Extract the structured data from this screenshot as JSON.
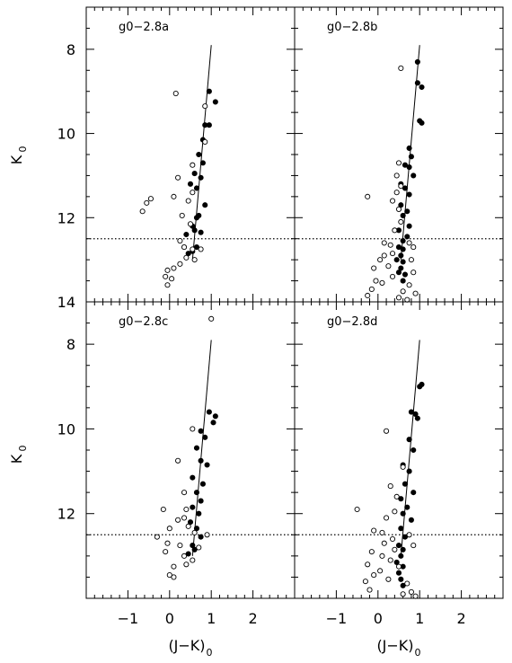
{
  "figure": {
    "xlabel": "(J−K)",
    "xlabel_sub": "0",
    "ylabel": "K",
    "ylabel_sub": "0",
    "line_color": "#000000",
    "point_color": "#000000",
    "grid": false
  },
  "chart_data": [
    {
      "type": "scatter",
      "title": "g0−2.8a",
      "xlim": [
        -2.0,
        3.0
      ],
      "ylim": [
        14.0,
        7.0
      ],
      "xticks": [
        -1,
        0,
        1,
        2
      ],
      "yticks": [
        8,
        10,
        12,
        14
      ],
      "yticklabels": [
        "8",
        "10",
        "12",
        "14"
      ],
      "limit_line": {
        "y": 12.5,
        "style": "dotted"
      },
      "fit_line": [
        [
          0.55,
          13.0
        ],
        [
          1.0,
          7.9
        ]
      ],
      "series": [
        {
          "marker": "filled",
          "points": [
            [
              0.95,
              9.0
            ],
            [
              1.1,
              9.25
            ],
            [
              0.85,
              9.8
            ],
            [
              0.95,
              9.8
            ],
            [
              0.8,
              10.15
            ],
            [
              0.7,
              10.5
            ],
            [
              0.8,
              10.7
            ],
            [
              0.6,
              10.95
            ],
            [
              0.75,
              11.05
            ],
            [
              0.5,
              11.2
            ],
            [
              0.65,
              11.3
            ],
            [
              0.85,
              11.7
            ],
            [
              0.7,
              11.95
            ],
            [
              0.65,
              12.0
            ],
            [
              0.55,
              12.2
            ],
            [
              0.6,
              12.3
            ],
            [
              0.75,
              12.35
            ],
            [
              0.4,
              12.4
            ],
            [
              0.65,
              12.7
            ],
            [
              0.55,
              12.8
            ],
            [
              0.45,
              12.85
            ]
          ]
        },
        {
          "marker": "open",
          "points": [
            [
              0.15,
              9.05
            ],
            [
              0.85,
              9.35
            ],
            [
              0.85,
              10.2
            ],
            [
              0.55,
              10.75
            ],
            [
              0.2,
              11.05
            ],
            [
              0.55,
              11.4
            ],
            [
              0.45,
              11.6
            ],
            [
              0.1,
              11.5
            ],
            [
              -0.45,
              11.55
            ],
            [
              -0.55,
              11.65
            ],
            [
              -0.65,
              11.85
            ],
            [
              0.3,
              11.95
            ],
            [
              0.5,
              12.15
            ],
            [
              0.25,
              12.55
            ],
            [
              0.35,
              12.7
            ],
            [
              0.55,
              12.75
            ],
            [
              0.75,
              12.75
            ],
            [
              0.4,
              12.95
            ],
            [
              0.6,
              13.0
            ],
            [
              0.25,
              13.1
            ],
            [
              0.1,
              13.2
            ],
            [
              -0.05,
              13.25
            ],
            [
              -0.1,
              13.4
            ],
            [
              0.05,
              13.45
            ],
            [
              -0.05,
              13.6
            ]
          ]
        }
      ]
    },
    {
      "type": "scatter",
      "title": "g0−2.8b",
      "xlim": [
        -2.0,
        3.0
      ],
      "ylim": [
        14.0,
        7.0
      ],
      "xticks": [
        -1,
        0,
        1,
        2
      ],
      "yticks": [
        8,
        10,
        12,
        14
      ],
      "yticklabels": [
        "8",
        "10",
        "12",
        "14"
      ],
      "limit_line": {
        "y": 12.5,
        "style": "dotted"
      },
      "fit_line": [
        [
          0.55,
          13.0
        ],
        [
          1.0,
          7.9
        ]
      ],
      "series": [
        {
          "marker": "filled",
          "points": [
            [
              0.95,
              8.3
            ],
            [
              0.95,
              8.8
            ],
            [
              1.05,
              8.9
            ],
            [
              1.0,
              9.7
            ],
            [
              1.05,
              9.75
            ],
            [
              0.75,
              10.35
            ],
            [
              0.8,
              10.55
            ],
            [
              0.65,
              10.75
            ],
            [
              0.75,
              10.8
            ],
            [
              0.85,
              11.0
            ],
            [
              0.55,
              11.2
            ],
            [
              0.65,
              11.3
            ],
            [
              0.75,
              11.45
            ],
            [
              0.55,
              11.7
            ],
            [
              0.7,
              11.85
            ],
            [
              0.6,
              11.95
            ],
            [
              0.75,
              12.2
            ],
            [
              0.5,
              12.3
            ],
            [
              0.7,
              12.45
            ],
            [
              0.6,
              12.55
            ],
            [
              0.5,
              12.7
            ],
            [
              0.6,
              12.75
            ],
            [
              0.55,
              12.9
            ],
            [
              0.45,
              13.0
            ],
            [
              0.6,
              13.05
            ],
            [
              0.55,
              13.2
            ],
            [
              0.5,
              13.3
            ],
            [
              0.65,
              13.35
            ],
            [
              0.6,
              13.5
            ]
          ]
        },
        {
          "marker": "open",
          "points": [
            [
              0.55,
              8.45
            ],
            [
              0.5,
              10.7
            ],
            [
              0.45,
              11.0
            ],
            [
              0.55,
              11.25
            ],
            [
              0.45,
              11.4
            ],
            [
              -0.25,
              11.5
            ],
            [
              0.35,
              11.6
            ],
            [
              0.5,
              11.8
            ],
            [
              0.55,
              12.1
            ],
            [
              0.4,
              12.3
            ],
            [
              0.15,
              12.6
            ],
            [
              0.3,
              12.65
            ],
            [
              0.75,
              12.6
            ],
            [
              0.85,
              12.7
            ],
            [
              0.35,
              12.85
            ],
            [
              0.15,
              12.9
            ],
            [
              0.05,
              13.0
            ],
            [
              0.8,
              13.0
            ],
            [
              0.25,
              13.15
            ],
            [
              -0.1,
              13.2
            ],
            [
              0.85,
              13.3
            ],
            [
              0.35,
              13.4
            ],
            [
              -0.05,
              13.5
            ],
            [
              0.1,
              13.55
            ],
            [
              0.75,
              13.6
            ],
            [
              -0.15,
              13.7
            ],
            [
              0.6,
              13.75
            ],
            [
              0.9,
              13.8
            ],
            [
              -0.25,
              13.85
            ],
            [
              0.5,
              13.9
            ],
            [
              0.7,
              13.95
            ]
          ]
        }
      ]
    },
    {
      "type": "scatter",
      "title": "g0−2.8c",
      "xlim": [
        -2.0,
        3.0
      ],
      "ylim": [
        14.0,
        7.0
      ],
      "xticks": [
        -1,
        0,
        1,
        2
      ],
      "yticks": [
        8,
        10,
        12
      ],
      "yticklabels": [
        "8",
        "10",
        "12"
      ],
      "limit_line": {
        "y": 12.5,
        "style": "dotted"
      },
      "fit_line": [
        [
          0.55,
          13.0
        ],
        [
          1.0,
          7.9
        ]
      ],
      "series": [
        {
          "marker": "filled",
          "points": [
            [
              0.95,
              9.6
            ],
            [
              1.1,
              9.7
            ],
            [
              1.05,
              9.85
            ],
            [
              0.75,
              10.05
            ],
            [
              0.85,
              10.2
            ],
            [
              0.65,
              10.45
            ],
            [
              0.75,
              10.75
            ],
            [
              0.9,
              10.85
            ],
            [
              0.55,
              11.15
            ],
            [
              0.8,
              11.3
            ],
            [
              0.65,
              11.5
            ],
            [
              0.75,
              11.7
            ],
            [
              0.55,
              11.85
            ],
            [
              0.7,
              12.0
            ],
            [
              0.5,
              12.2
            ],
            [
              0.65,
              12.35
            ],
            [
              0.75,
              12.55
            ],
            [
              0.55,
              12.75
            ],
            [
              0.6,
              12.85
            ],
            [
              0.45,
              12.95
            ]
          ]
        },
        {
          "marker": "open",
          "points": [
            [
              1.0,
              7.4
            ],
            [
              0.55,
              10.0
            ],
            [
              0.2,
              10.75
            ],
            [
              0.35,
              11.5
            ],
            [
              0.4,
              11.9
            ],
            [
              0.35,
              12.1
            ],
            [
              -0.15,
              11.9
            ],
            [
              0.2,
              12.15
            ],
            [
              0.45,
              12.3
            ],
            [
              0.6,
              12.45
            ],
            [
              0.9,
              12.5
            ],
            [
              -0.3,
              12.55
            ],
            [
              0.0,
              12.35
            ],
            [
              -0.05,
              12.7
            ],
            [
              0.25,
              12.75
            ],
            [
              0.7,
              12.8
            ],
            [
              -0.1,
              12.9
            ],
            [
              0.35,
              13.0
            ],
            [
              0.55,
              13.1
            ],
            [
              0.4,
              13.2
            ],
            [
              0.1,
              13.25
            ],
            [
              0.0,
              13.45
            ],
            [
              0.1,
              13.5
            ]
          ]
        }
      ]
    },
    {
      "type": "scatter",
      "title": "g0−2.8d",
      "xlim": [
        -2.0,
        3.0
      ],
      "ylim": [
        14.0,
        7.0
      ],
      "xticks": [
        -1,
        0,
        1,
        2
      ],
      "yticks": [
        8,
        10,
        12
      ],
      "yticklabels": [
        "8",
        "10",
        "12"
      ],
      "limit_line": {
        "y": 12.5,
        "style": "dotted"
      },
      "fit_line": [
        [
          0.55,
          13.0
        ],
        [
          1.0,
          7.9
        ]
      ],
      "series": [
        {
          "marker": "filled",
          "points": [
            [
              1.05,
              8.95
            ],
            [
              1.0,
              9.0
            ],
            [
              0.8,
              9.6
            ],
            [
              0.9,
              9.65
            ],
            [
              0.95,
              9.75
            ],
            [
              0.75,
              10.25
            ],
            [
              0.85,
              10.5
            ],
            [
              0.6,
              10.85
            ],
            [
              0.75,
              11.0
            ],
            [
              0.65,
              11.3
            ],
            [
              0.85,
              11.5
            ],
            [
              0.55,
              11.65
            ],
            [
              0.7,
              11.85
            ],
            [
              0.6,
              12.0
            ],
            [
              0.8,
              12.15
            ],
            [
              0.55,
              12.35
            ],
            [
              0.65,
              12.55
            ],
            [
              0.5,
              12.75
            ],
            [
              0.6,
              12.85
            ],
            [
              0.55,
              13.0
            ],
            [
              0.45,
              13.15
            ],
            [
              0.6,
              13.25
            ],
            [
              0.5,
              13.4
            ],
            [
              0.55,
              13.55
            ],
            [
              0.6,
              13.7
            ]
          ]
        },
        {
          "marker": "open",
          "points": [
            [
              0.2,
              10.05
            ],
            [
              0.6,
              10.9
            ],
            [
              0.3,
              11.35
            ],
            [
              0.45,
              11.6
            ],
            [
              0.4,
              11.95
            ],
            [
              -0.5,
              11.9
            ],
            [
              0.2,
              12.1
            ],
            [
              -0.1,
              12.4
            ],
            [
              0.1,
              12.45
            ],
            [
              0.75,
              12.5
            ],
            [
              0.35,
              12.6
            ],
            [
              0.15,
              12.7
            ],
            [
              0.85,
              12.75
            ],
            [
              0.4,
              12.85
            ],
            [
              -0.15,
              12.9
            ],
            [
              0.1,
              13.0
            ],
            [
              0.3,
              13.1
            ],
            [
              -0.25,
              13.2
            ],
            [
              0.5,
              13.25
            ],
            [
              0.05,
              13.35
            ],
            [
              -0.1,
              13.45
            ],
            [
              0.25,
              13.55
            ],
            [
              -0.3,
              13.6
            ],
            [
              0.7,
              13.65
            ],
            [
              -0.2,
              13.8
            ],
            [
              0.8,
              13.85
            ],
            [
              0.6,
              13.9
            ],
            [
              0.9,
              13.95
            ]
          ]
        }
      ]
    }
  ]
}
